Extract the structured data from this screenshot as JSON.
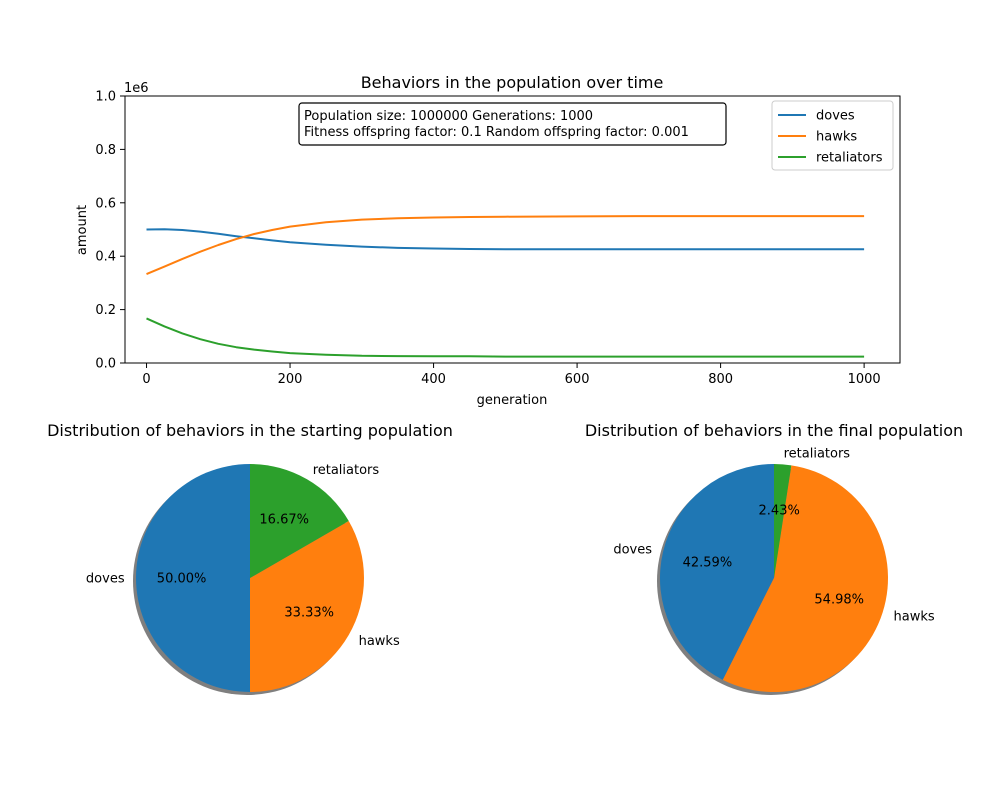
{
  "chart_data": [
    {
      "type": "line",
      "title": "Behaviors in the population over time",
      "xlabel": "generation",
      "ylabel": "amount",
      "y_offset_label": "1e6",
      "xlim": [
        -30,
        1050
      ],
      "ylim": [
        0,
        1.0
      ],
      "xticks": [
        0,
        200,
        400,
        600,
        800,
        1000
      ],
      "xtick_labels": [
        "0",
        "200",
        "400",
        "600",
        "800",
        "1000"
      ],
      "yticks": [
        0,
        0.2,
        0.4,
        0.6,
        0.8,
        1.0
      ],
      "ytick_labels": [
        "0.0",
        "0.2",
        "0.4",
        "0.6",
        "0.8",
        "1.0"
      ],
      "grid": false,
      "legend_position": "top-right",
      "annotation": {
        "line1": "Population size: 1000000     Generations: 1000",
        "line2": "Fitness offspring factor: 0.1  Random offspring factor: 0.001"
      },
      "x": [
        0,
        25,
        50,
        75,
        100,
        125,
        150,
        175,
        200,
        250,
        300,
        350,
        400,
        450,
        500,
        600,
        700,
        800,
        900,
        1000
      ],
      "series": [
        {
          "name": "doves",
          "color": "#1f77b4",
          "values": [
            0.5,
            0.501,
            0.498,
            0.492,
            0.484,
            0.475,
            0.467,
            0.459,
            0.452,
            0.443,
            0.436,
            0.431,
            0.429,
            0.427,
            0.426,
            0.426,
            0.426,
            0.426,
            0.426,
            0.426
          ]
        },
        {
          "name": "hawks",
          "color": "#ff7f0e",
          "values": [
            0.333,
            0.361,
            0.39,
            0.417,
            0.442,
            0.464,
            0.483,
            0.498,
            0.511,
            0.527,
            0.537,
            0.542,
            0.545,
            0.547,
            0.548,
            0.549,
            0.55,
            0.55,
            0.55,
            0.55
          ]
        },
        {
          "name": "retaliators",
          "color": "#2ca02c",
          "values": [
            0.167,
            0.137,
            0.111,
            0.089,
            0.072,
            0.059,
            0.05,
            0.043,
            0.037,
            0.031,
            0.027,
            0.026,
            0.025,
            0.025,
            0.024,
            0.024,
            0.024,
            0.024,
            0.024,
            0.024
          ]
        }
      ]
    },
    {
      "type": "pie",
      "title": "Distribution of behaviors in the starting population",
      "start_angle_deg": 90,
      "counterclockwise": true,
      "shadow": true,
      "slices": [
        {
          "label": "doves",
          "value": 50.0,
          "pct": "50.00%",
          "color": "#1f77b4"
        },
        {
          "label": "hawks",
          "value": 33.33,
          "pct": "33.33%",
          "color": "#ff7f0e"
        },
        {
          "label": "retaliators",
          "value": 16.67,
          "pct": "16.67%",
          "color": "#2ca02c"
        }
      ]
    },
    {
      "type": "pie",
      "title": "Distribution of behaviors in the final population",
      "start_angle_deg": 90,
      "counterclockwise": true,
      "shadow": true,
      "slices": [
        {
          "label": "doves",
          "value": 42.59,
          "pct": "42.59%",
          "color": "#1f77b4"
        },
        {
          "label": "hawks",
          "value": 54.98,
          "pct": "54.98%",
          "color": "#ff7f0e"
        },
        {
          "label": "retaliators",
          "value": 2.43,
          "pct": "2.43%",
          "color": "#2ca02c"
        }
      ]
    }
  ]
}
